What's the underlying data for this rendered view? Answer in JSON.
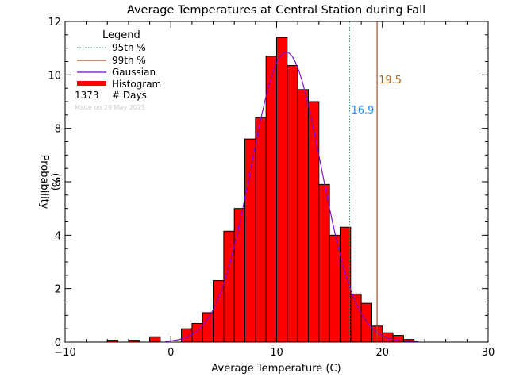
{
  "chart_data": {
    "type": "bar",
    "title": "Average Temperatures at Central Station during Fall",
    "xlabel": "Average Temperature (C)",
    "ylabel_line1": "Probability",
    "ylabel_line2": "(%)",
    "xlim": [
      -10,
      30
    ],
    "ylim": [
      0,
      12
    ],
    "xticks": [
      "−10",
      "0",
      "10",
      "20",
      "30"
    ],
    "yticks": [
      "0",
      "2",
      "4",
      "6",
      "8",
      "10",
      "12"
    ],
    "bin_width": 1,
    "bins": [
      {
        "x0": -6,
        "value": 0.07
      },
      {
        "x0": -4,
        "value": 0.07
      },
      {
        "x0": -2,
        "value": 0.2
      },
      {
        "x0": 1,
        "value": 0.5
      },
      {
        "x0": 2,
        "value": 0.7
      },
      {
        "x0": 3,
        "value": 1.1
      },
      {
        "x0": 4,
        "value": 2.3
      },
      {
        "x0": 5,
        "value": 4.15
      },
      {
        "x0": 6,
        "value": 5.0
      },
      {
        "x0": 7,
        "value": 7.6
      },
      {
        "x0": 8,
        "value": 8.4
      },
      {
        "x0": 9,
        "value": 10.7
      },
      {
        "x0": 10,
        "value": 11.4
      },
      {
        "x0": 11,
        "value": 10.35
      },
      {
        "x0": 12,
        "value": 9.45
      },
      {
        "x0": 13,
        "value": 9.0
      },
      {
        "x0": 14,
        "value": 5.9
      },
      {
        "x0": 15,
        "value": 4.0
      },
      {
        "x0": 16,
        "value": 4.3
      },
      {
        "x0": 17,
        "value": 1.8
      },
      {
        "x0": 18,
        "value": 1.45
      },
      {
        "x0": 19,
        "value": 0.6
      },
      {
        "x0": 20,
        "value": 0.35
      },
      {
        "x0": 21,
        "value": 0.25
      },
      {
        "x0": 22,
        "value": 0.1
      }
    ],
    "gaussian": {
      "mean": 10.9,
      "peak": 10.85,
      "sigma": 3.3
    },
    "p95": {
      "value": 16.9,
      "label": "16.9"
    },
    "p99": {
      "value": 19.5,
      "label": "19.5"
    },
    "legend": {
      "title": "Legend",
      "placement": "top-left",
      "entries": [
        "95th %",
        "99th %",
        "Gaussian",
        "Histogram"
      ],
      "count_value": "1373",
      "count_label": "# Days",
      "made_on": "Made on 29 May 2025"
    },
    "colors": {
      "histogram": "#ff0000",
      "gaussian": "#7b00d4",
      "p95": "#2e8b57",
      "p99": "#a0522d",
      "p95_label": "#1e90ff",
      "p99_label": "#b8620b",
      "made_on": "#c8c8c8"
    }
  }
}
